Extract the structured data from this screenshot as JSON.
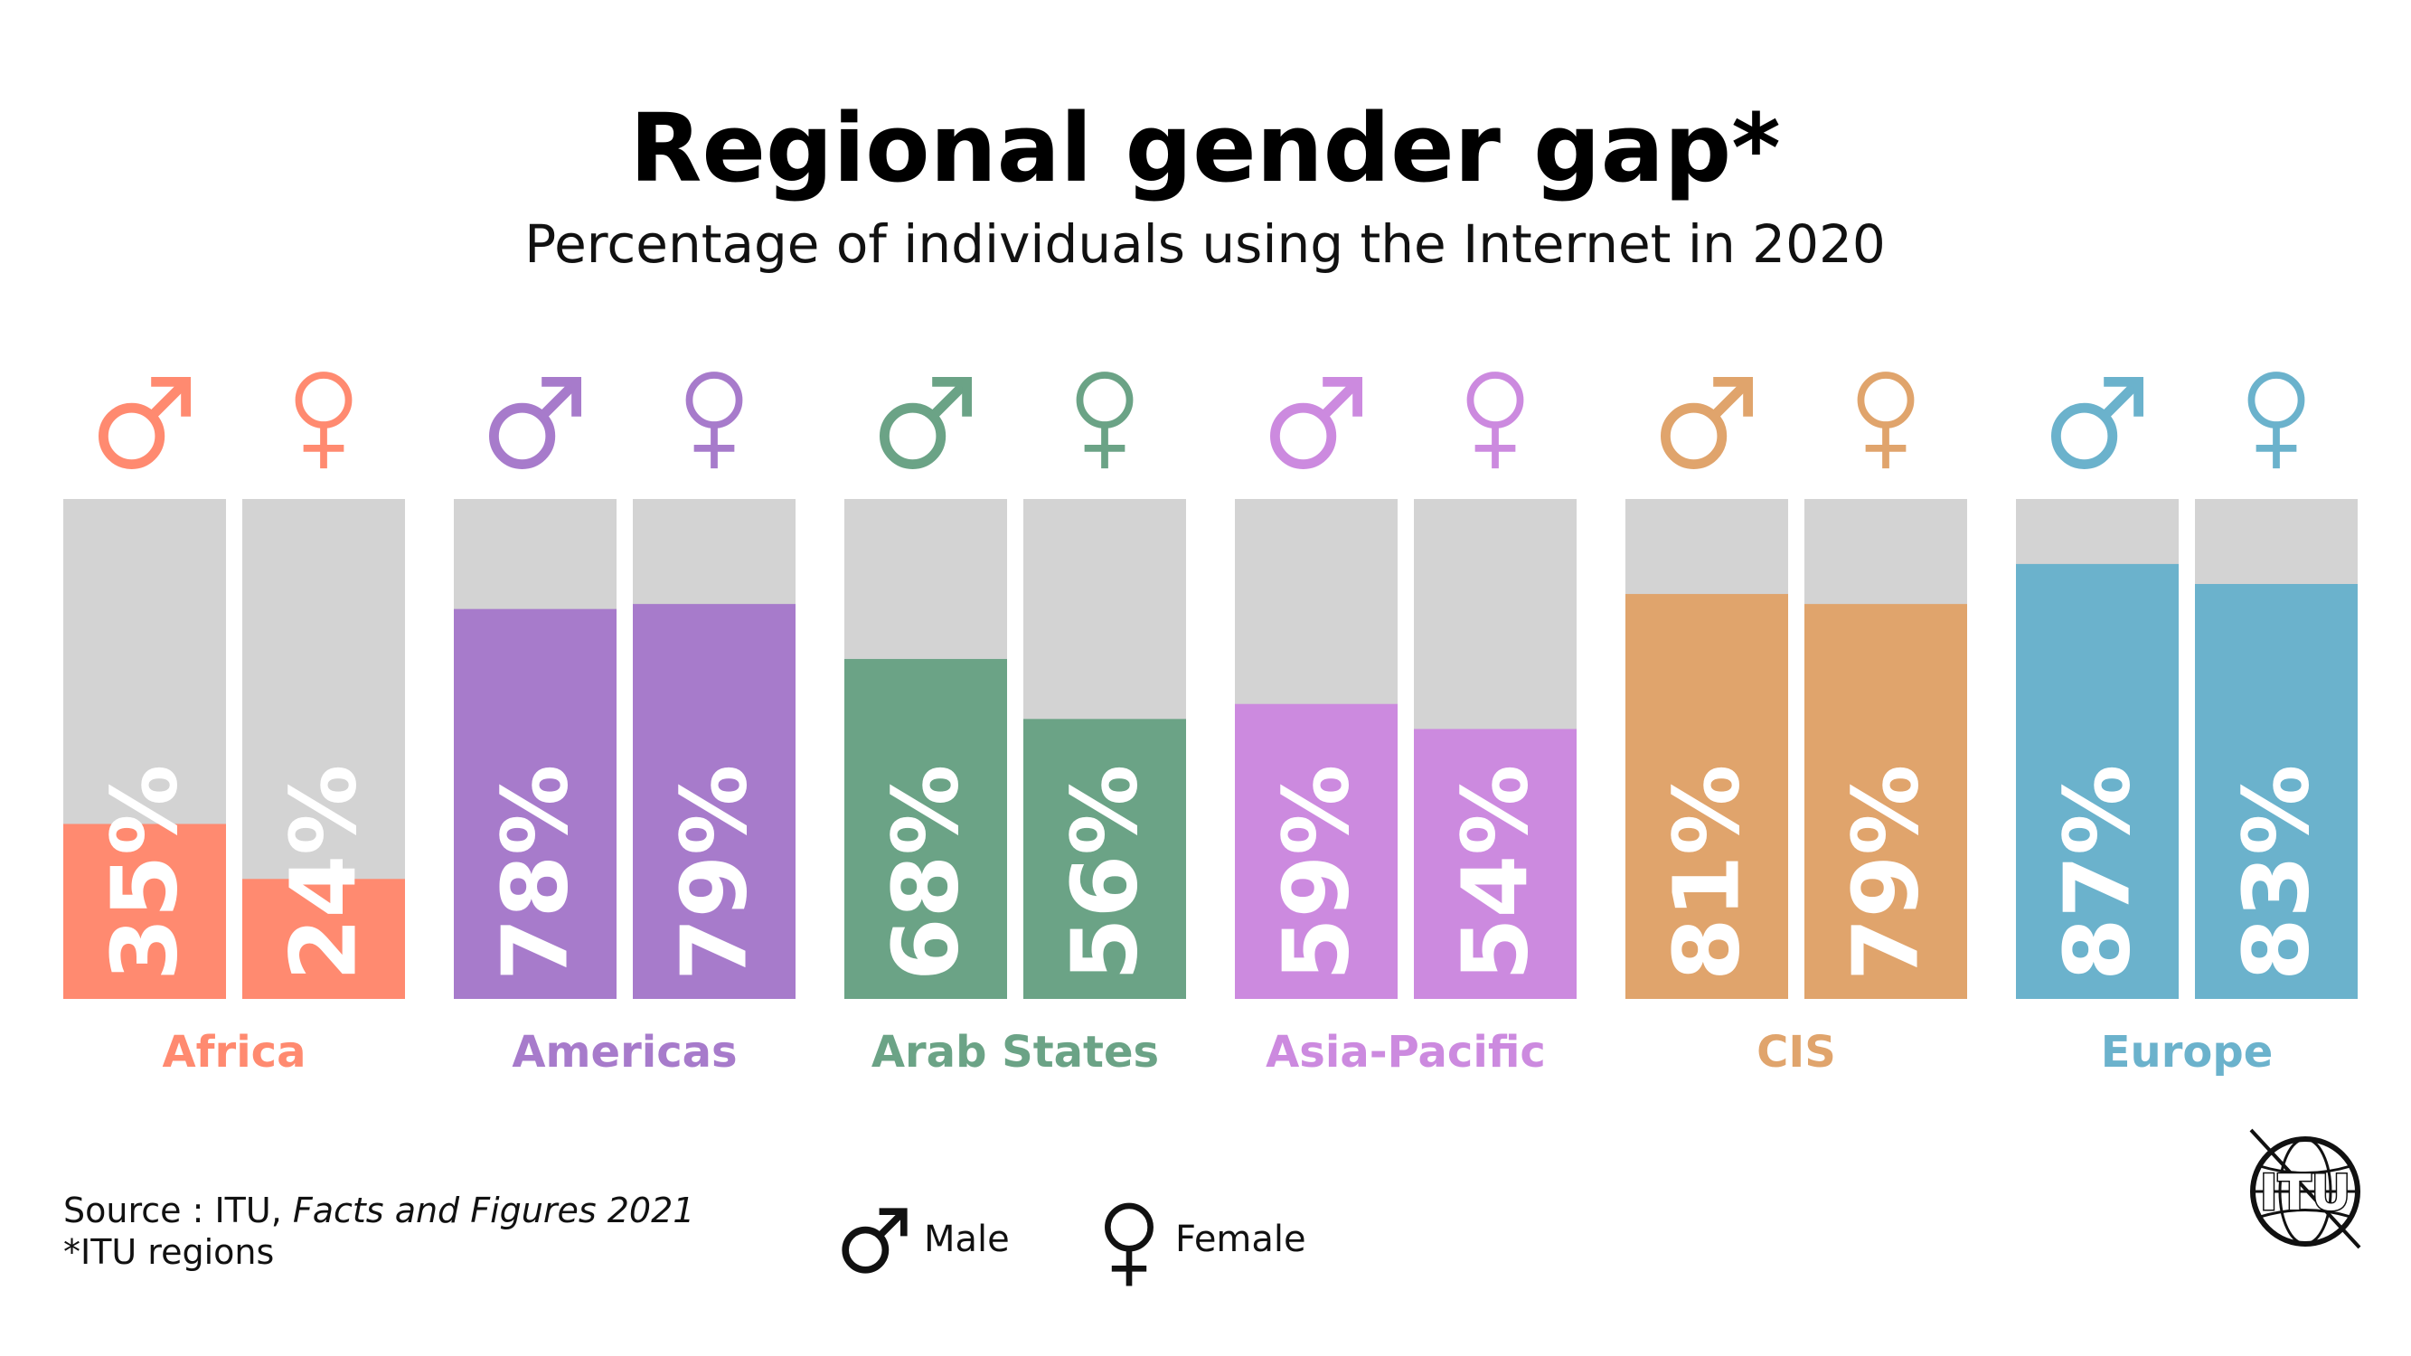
{
  "chart_data": {
    "type": "bar",
    "title": "Regional gender gap*",
    "subtitle": "Percentage of individuals using the Internet in 2020",
    "unit": "%",
    "ylim": [
      0,
      100
    ],
    "categories": [
      "Africa",
      "Americas",
      "Arab States",
      "Asia-Pacific",
      "CIS",
      "Europe"
    ],
    "series": [
      {
        "name": "Male",
        "values": [
          35,
          78,
          68,
          59,
          81,
          87
        ]
      },
      {
        "name": "Female",
        "values": [
          24,
          79,
          56,
          54,
          79,
          83
        ]
      }
    ],
    "value_labels": {
      "Male": [
        "35%",
        "78%",
        "68%",
        "59%",
        "81%",
        "87%"
      ],
      "Female": [
        "24%",
        "79%",
        "56%",
        "54%",
        "79%",
        "83%"
      ]
    },
    "category_colors": [
      "#FF8A70",
      "#A77BCB",
      "#6BA386",
      "#CC8ADF",
      "#E0A46C",
      "#6BB2CC"
    ],
    "background_bar_color": "#D3D3D3",
    "legend": {
      "position": "bottom-center",
      "items": [
        "Male",
        "Female"
      ]
    }
  },
  "footer": {
    "source_prefix": "Source : ITU, ",
    "source_title": "Facts and Figures 2021",
    "note": "*ITU regions"
  },
  "logo": {
    "text": "ITU",
    "icon": "itu-globe-logo"
  },
  "icons": {
    "male": "male-symbol-icon",
    "female": "female-symbol-icon"
  }
}
